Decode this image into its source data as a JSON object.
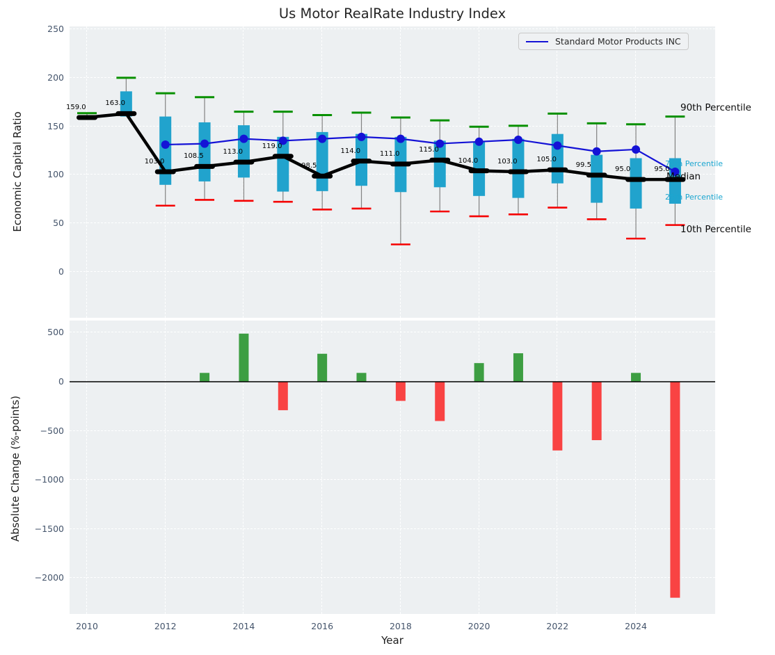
{
  "title": "Us Motor RealRate Industry Index",
  "legend": {
    "label": "Standard Motor Products INC"
  },
  "right_labels": {
    "p90": "90th Percentile",
    "p75": "75th Percentile",
    "median": "Median",
    "p25": "25th Percentile",
    "p10": "10th Percentile"
  },
  "colors": {
    "box": "#21a3cd",
    "median_line": "#000000",
    "company_line": "#1412d6",
    "cap_90": "#089000",
    "cap_10": "#f50000",
    "whisker": "#828282",
    "bar_positive": "#3d9e42",
    "bar_negative": "#f94343",
    "percentile_label_cyan": "#1ba6d0",
    "axes_bg": "#edf0f2",
    "tick_color": "#44546b"
  },
  "chart_data": [
    {
      "type": "boxplot",
      "title": "Us Motor RealRate Industry Index",
      "ylabel": "Economic Capital Ratio",
      "ylim": [
        -47,
        253
      ],
      "yticks": [
        "0",
        "50",
        "100",
        "150",
        "200",
        "250"
      ],
      "ytick_values": [
        0,
        50,
        100,
        150,
        200,
        250
      ],
      "grid": true,
      "legend_position": "upper right",
      "x": [
        2010,
        2011,
        2012,
        2013,
        2014,
        2015,
        2016,
        2017,
        2018,
        2019,
        2020,
        2021,
        2022,
        2023,
        2024,
        2025
      ],
      "series": [
        {
          "name": "Median",
          "values": [
            159.0,
            163.0,
            103.0,
            108.5,
            113.0,
            119.0,
            98.5,
            114.0,
            111.0,
            115.0,
            104.0,
            103.0,
            105.0,
            99.5,
            95.0,
            95.0
          ]
        },
        {
          "name": "Standard Motor Products INC",
          "values": [
            null,
            null,
            131,
            132,
            137,
            135,
            137,
            139,
            137,
            132,
            134,
            136,
            130,
            124,
            126,
            103
          ]
        },
        {
          "name": "90th Percentile",
          "values": [
            163.5,
            200,
            184,
            180,
            165,
            165,
            161.5,
            164,
            159,
            156,
            149.5,
            150.5,
            163,
            153,
            152,
            160
          ]
        },
        {
          "name": "75th Percentile",
          "values": [
            null,
            186,
            160,
            154,
            151,
            139,
            144,
            142,
            139,
            135,
            134,
            137,
            142,
            120.5,
            117,
            117
          ]
        },
        {
          "name": "25th Percentile",
          "values": [
            null,
            160,
            89.5,
            93,
            97,
            82.5,
            83,
            88.5,
            82,
            87,
            78,
            76,
            91,
            71,
            65,
            70
          ]
        },
        {
          "name": "10th Percentile",
          "values": [
            null,
            null,
            68,
            74,
            73,
            72,
            64,
            65,
            28,
            62,
            57,
            59,
            66,
            54,
            34,
            48
          ]
        }
      ],
      "annotations": [
        "159.0",
        "163.0",
        "103.0",
        "108.5",
        "113.0",
        "119.0",
        "98.5",
        "114.0",
        "111.0",
        "115.0",
        "104.0",
        "103.0",
        "105.0",
        "99.5",
        "95.0",
        "95.0"
      ]
    },
    {
      "type": "bar",
      "ylabel": "Absolute Change (%-points)",
      "xlabel": "Year",
      "ylim": [
        -2365,
        650
      ],
      "yticks": [
        "500",
        "0",
        "−500",
        "−1000",
        "−1500",
        "−2000"
      ],
      "ytick_values": [
        500,
        0,
        -500,
        -1000,
        -1500,
        -2000
      ],
      "xticks": [
        "2010",
        "2012",
        "2014",
        "2016",
        "2018",
        "2020",
        "2022",
        "2024"
      ],
      "xtick_values": [
        2010,
        2012,
        2014,
        2016,
        2018,
        2020,
        2022,
        2024
      ],
      "grid": true,
      "x": [
        2010,
        2011,
        2012,
        2013,
        2014,
        2015,
        2016,
        2017,
        2018,
        2019,
        2020,
        2021,
        2022,
        2023,
        2024,
        2025
      ],
      "values": [
        null,
        null,
        null,
        90,
        490,
        -290,
        285,
        90,
        -195,
        -400,
        190,
        290,
        -700,
        -595,
        90,
        -2200
      ]
    }
  ]
}
